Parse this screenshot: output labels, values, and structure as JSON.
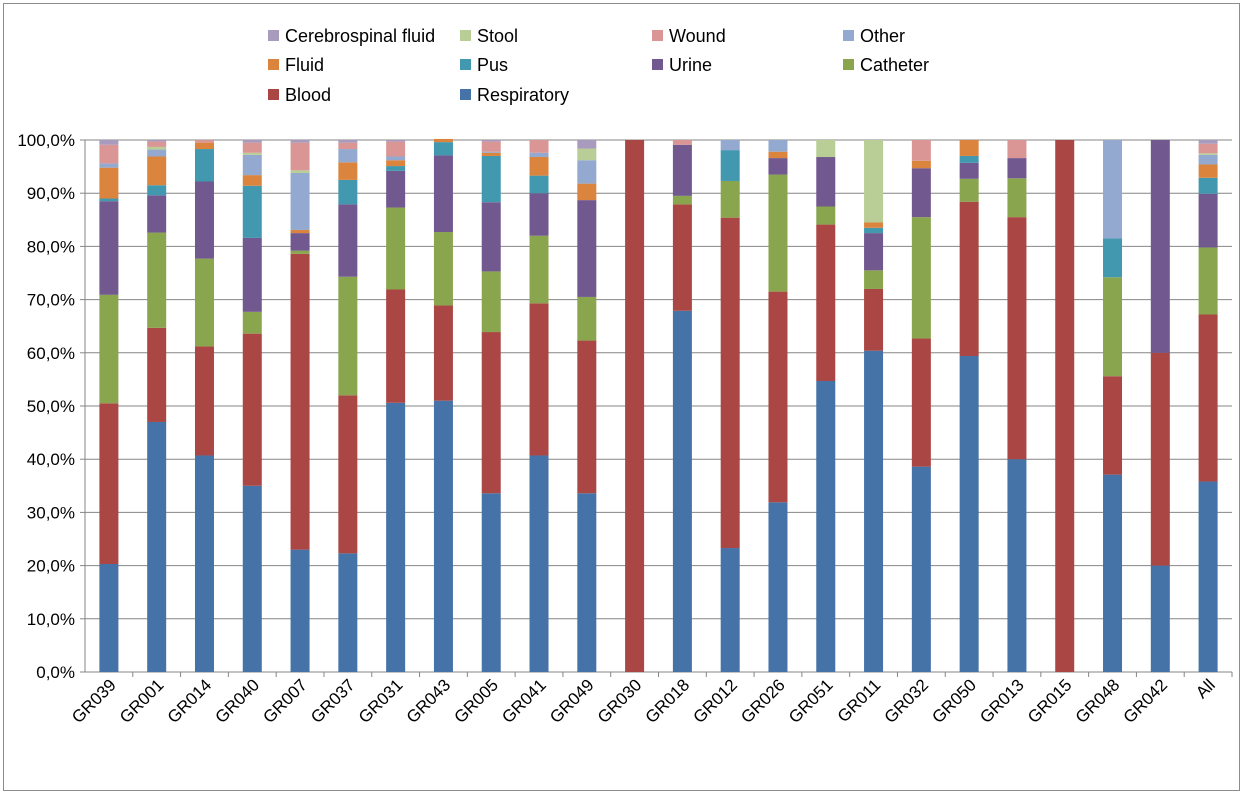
{
  "chart_data": {
    "type": "bar",
    "stacked": true,
    "title": "",
    "xlabel": "",
    "ylabel": "",
    "ylim": [
      0,
      100
    ],
    "yticks": [
      "0,0%",
      "10,0%",
      "20,0%",
      "30,0%",
      "40,0%",
      "50,0%",
      "60,0%",
      "70,0%",
      "80,0%",
      "90,0%",
      "100,0%"
    ],
    "grid": "horizontal",
    "legend_position": "top",
    "categories": [
      "GR039",
      "GR001",
      "GR014",
      "GR040",
      "GR007",
      "GR037",
      "GR031",
      "GR043",
      "GR005",
      "GR041",
      "GR049",
      "GR030",
      "GR018",
      "GR012",
      "GR026",
      "GR051",
      "GR011",
      "GR032",
      "GR050",
      "GR013",
      "GR015",
      "GR048",
      "GR042",
      "All"
    ],
    "series": [
      {
        "name": "Respiratory",
        "color": "#4572a7",
        "values": [
          20.3,
          47.0,
          40.7,
          35.0,
          23.0,
          22.3,
          50.6,
          51.0,
          33.6,
          40.7,
          33.6,
          0,
          67.9,
          23.3,
          31.9,
          54.7,
          60.4,
          38.6,
          59.4,
          40.0,
          0,
          37.1,
          20.0,
          35.8
        ]
      },
      {
        "name": "Blood",
        "color": "#aa4643",
        "values": [
          30.2,
          17.7,
          20.5,
          28.6,
          55.6,
          29.7,
          21.3,
          17.9,
          30.3,
          28.6,
          28.7,
          100,
          20.0,
          62.1,
          39.6,
          29.4,
          11.6,
          24.1,
          29.0,
          45.5,
          100,
          18.5,
          40.0,
          31.4
        ]
      },
      {
        "name": "Catheter",
        "color": "#89a54e",
        "values": [
          20.4,
          17.9,
          16.5,
          4.1,
          0.6,
          22.3,
          15.4,
          13.8,
          11.4,
          12.7,
          8.2,
          0,
          1.6,
          6.9,
          22.0,
          3.4,
          3.5,
          22.8,
          4.3,
          7.3,
          0,
          18.6,
          0,
          12.6
        ]
      },
      {
        "name": "Urine",
        "color": "#71588f",
        "values": [
          17.6,
          7.0,
          14.5,
          13.9,
          3.3,
          13.6,
          6.9,
          14.4,
          13.0,
          8.0,
          18.2,
          0,
          9.6,
          0,
          3.1,
          9.3,
          7.0,
          9.2,
          3.0,
          3.8,
          0,
          0,
          40.0,
          10.1
        ]
      },
      {
        "name": "Pus",
        "color": "#4198af",
        "values": [
          0.5,
          1.9,
          6.1,
          9.8,
          0,
          4.6,
          0.9,
          2.5,
          8.7,
          3.3,
          0,
          0,
          0,
          5.8,
          0,
          0,
          1.0,
          0,
          1.3,
          0,
          0,
          7.3,
          0,
          3.0
        ]
      },
      {
        "name": "Fluid",
        "color": "#db843d",
        "values": [
          5.8,
          5.4,
          1.2,
          2.0,
          0.6,
          3.3,
          1.1,
          0.6,
          0.6,
          3.5,
          3.1,
          0,
          0,
          0,
          1.2,
          0,
          1.0,
          1.4,
          3.0,
          0,
          0,
          0,
          0,
          2.5
        ]
      },
      {
        "name": "Other",
        "color": "#93a9cf",
        "values": [
          0.8,
          1.3,
          0,
          3.8,
          10.7,
          2.5,
          0.7,
          0,
          0.2,
          0.8,
          4.4,
          0,
          0,
          1.9,
          2.2,
          0,
          0,
          0,
          0,
          0,
          0,
          18.5,
          0,
          1.8
        ]
      },
      {
        "name": "Stool",
        "color": "#b9cd96",
        "values": [
          0,
          0.5,
          0,
          0.4,
          0.5,
          0,
          0,
          0,
          0,
          0,
          2.2,
          0,
          0,
          0,
          0,
          3.2,
          15.5,
          0,
          0,
          0,
          0,
          0,
          0,
          0.3
        ]
      },
      {
        "name": "Wound",
        "color": "#d99694",
        "values": [
          3.5,
          1.0,
          0.5,
          1.9,
          5.2,
          1.2,
          2.8,
          0,
          1.9,
          2.4,
          0,
          0,
          0.9,
          0,
          0,
          0,
          0,
          3.9,
          0,
          3.4,
          0,
          0,
          0,
          1.8
        ]
      },
      {
        "name": "Cerebrospinal fluid",
        "color": "#a99bbd",
        "values": [
          0.9,
          0.3,
          0,
          0.5,
          0.5,
          0.5,
          0.3,
          0,
          0.3,
          0,
          1.6,
          0,
          0,
          0,
          0,
          0,
          0,
          0,
          0,
          0,
          0,
          0,
          0,
          0.7
        ]
      }
    ],
    "legend": [
      [
        "Cerebrospinal fluid",
        "Stool",
        "Wound",
        "Other"
      ],
      [
        "Fluid",
        "Pus",
        "Urine",
        "Catheter"
      ],
      [
        "Blood",
        "Respiratory"
      ]
    ]
  }
}
